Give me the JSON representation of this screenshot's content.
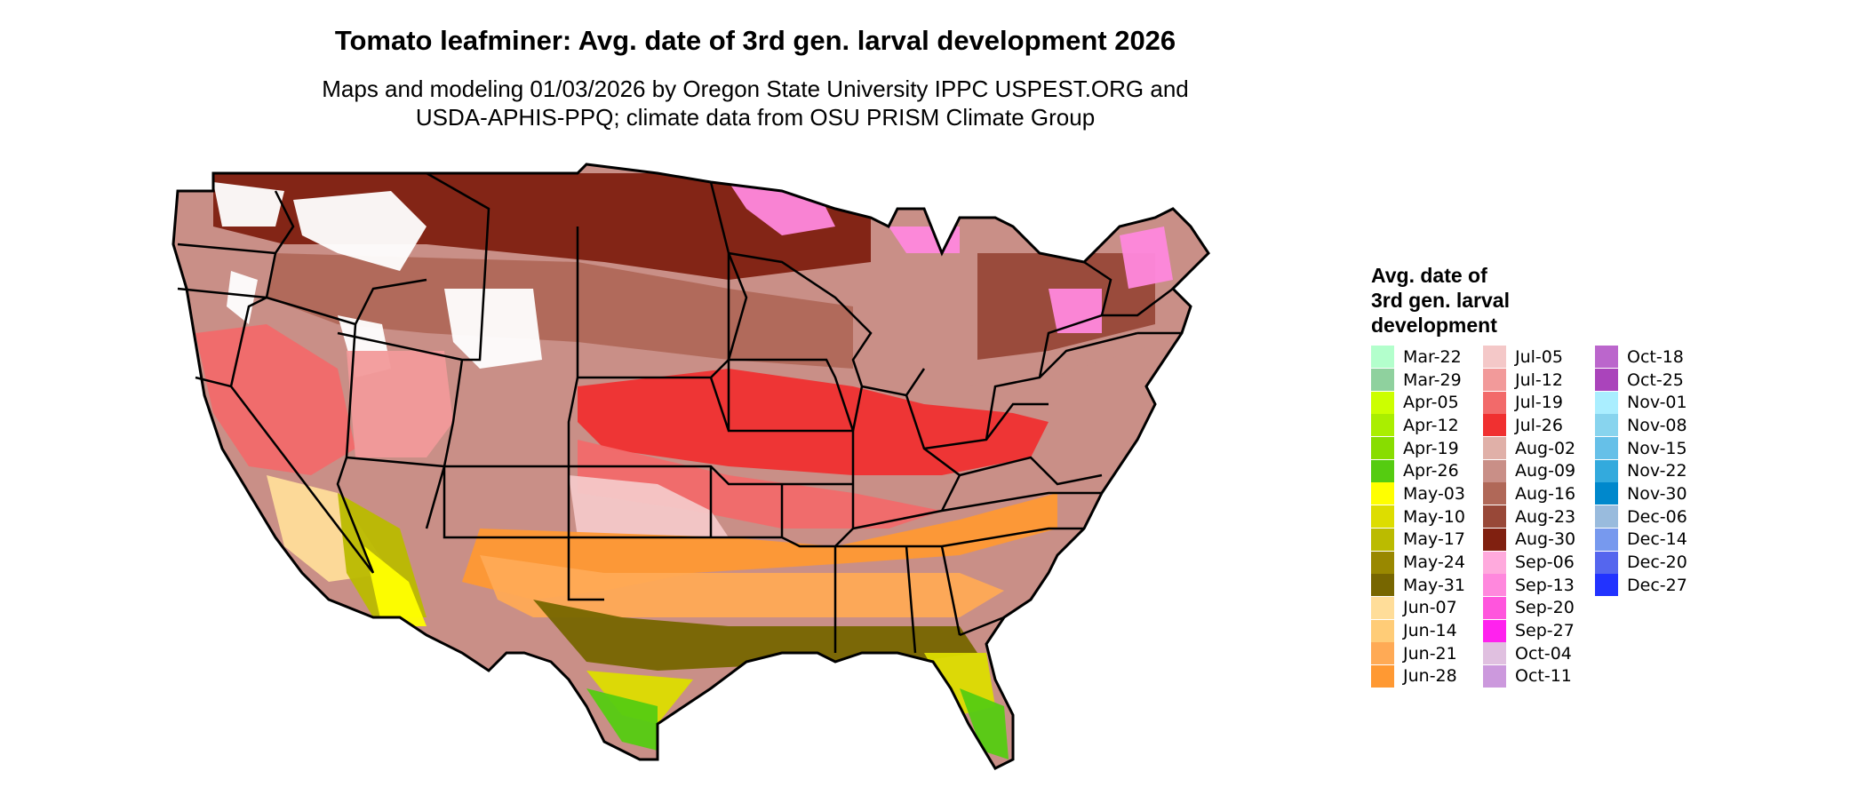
{
  "title": "Tomato leafminer: Avg. date of 3rd gen. larval development 2026",
  "subtitle": [
    "Maps and modeling 01/03/2026 by Oregon State University IPPC USPEST.ORG and",
    "USDA-APHIS-PPQ; climate data from OSU PRISM Climate Group"
  ],
  "legend": {
    "title": [
      "Avg. date of",
      "3rd gen. larval",
      "development"
    ],
    "columns": [
      [
        {
          "label": "Mar-22",
          "color": "#b3ffcc"
        },
        {
          "label": "Mar-29",
          "color": "#8fd19e"
        },
        {
          "label": "Apr-05",
          "color": "#ccff00"
        },
        {
          "label": "Apr-12",
          "color": "#aaee00"
        },
        {
          "label": "Apr-19",
          "color": "#88dd00"
        },
        {
          "label": "Apr-26",
          "color": "#55cc11"
        },
        {
          "label": "May-03",
          "color": "#ffff00"
        },
        {
          "label": "May-10",
          "color": "#dddd00"
        },
        {
          "label": "May-17",
          "color": "#bbbb00"
        },
        {
          "label": "May-24",
          "color": "#998800"
        },
        {
          "label": "May-31",
          "color": "#776600"
        },
        {
          "label": "Jun-07",
          "color": "#ffdd99"
        },
        {
          "label": "Jun-14",
          "color": "#ffcc77"
        },
        {
          "label": "Jun-21",
          "color": "#ffaa55"
        },
        {
          "label": "Jun-28",
          "color": "#ff9933"
        }
      ],
      [
        {
          "label": "Jul-05",
          "color": "#f4c8c8"
        },
        {
          "label": "Jul-12",
          "color": "#f29a9a"
        },
        {
          "label": "Jul-19",
          "color": "#f26a6a"
        },
        {
          "label": "Jul-26",
          "color": "#f03030"
        },
        {
          "label": "Aug-02",
          "color": "#e0b0a8"
        },
        {
          "label": "Aug-09",
          "color": "#c98f87"
        },
        {
          "label": "Aug-16",
          "color": "#b06858"
        },
        {
          "label": "Aug-23",
          "color": "#984838"
        },
        {
          "label": "Aug-30",
          "color": "#802010"
        },
        {
          "label": "Sep-06",
          "color": "#ffaadd"
        },
        {
          "label": "Sep-13",
          "color": "#ff88dd"
        },
        {
          "label": "Sep-20",
          "color": "#ff55dd"
        },
        {
          "label": "Sep-27",
          "color": "#ff22ee"
        },
        {
          "label": "Oct-04",
          "color": "#e0c0e0"
        },
        {
          "label": "Oct-11",
          "color": "#cc99dd"
        }
      ],
      [
        {
          "label": "Oct-18",
          "color": "#bb66cc"
        },
        {
          "label": "Oct-25",
          "color": "#aa44bb"
        },
        {
          "label": "Nov-01",
          "color": "#aaeeff"
        },
        {
          "label": "Nov-08",
          "color": "#88d4ee"
        },
        {
          "label": "Nov-15",
          "color": "#66c0e8"
        },
        {
          "label": "Nov-22",
          "color": "#33aadd"
        },
        {
          "label": "Nov-30",
          "color": "#0088cc"
        },
        {
          "label": "Dec-06",
          "color": "#99bbdd"
        },
        {
          "label": "Dec-14",
          "color": "#7799ee"
        },
        {
          "label": "Dec-20",
          "color": "#5566ee"
        },
        {
          "label": "Dec-27",
          "color": "#2233ff"
        }
      ]
    ]
  },
  "map_palette": {
    "white": "#ffffff",
    "aug30": "#802010",
    "aug23": "#984838",
    "aug16": "#b06858",
    "aug09": "#c98f87",
    "aug02": "#e0b0a8",
    "jul26": "#f03030",
    "jul19": "#f26a6a",
    "jul12": "#f29a9a",
    "jul05": "#f4c8c8",
    "jun28": "#ff9933",
    "jun21": "#ffaa55",
    "jun07": "#ffdd99",
    "may31": "#776600",
    "may24": "#998800",
    "may17": "#bbbb00",
    "may10": "#dddd00",
    "may03": "#ffff00",
    "apr26": "#55cc11",
    "apr12": "#aaee00",
    "apr05": "#ccff00",
    "sep13": "#ff88dd",
    "sep27": "#ff22ee"
  }
}
